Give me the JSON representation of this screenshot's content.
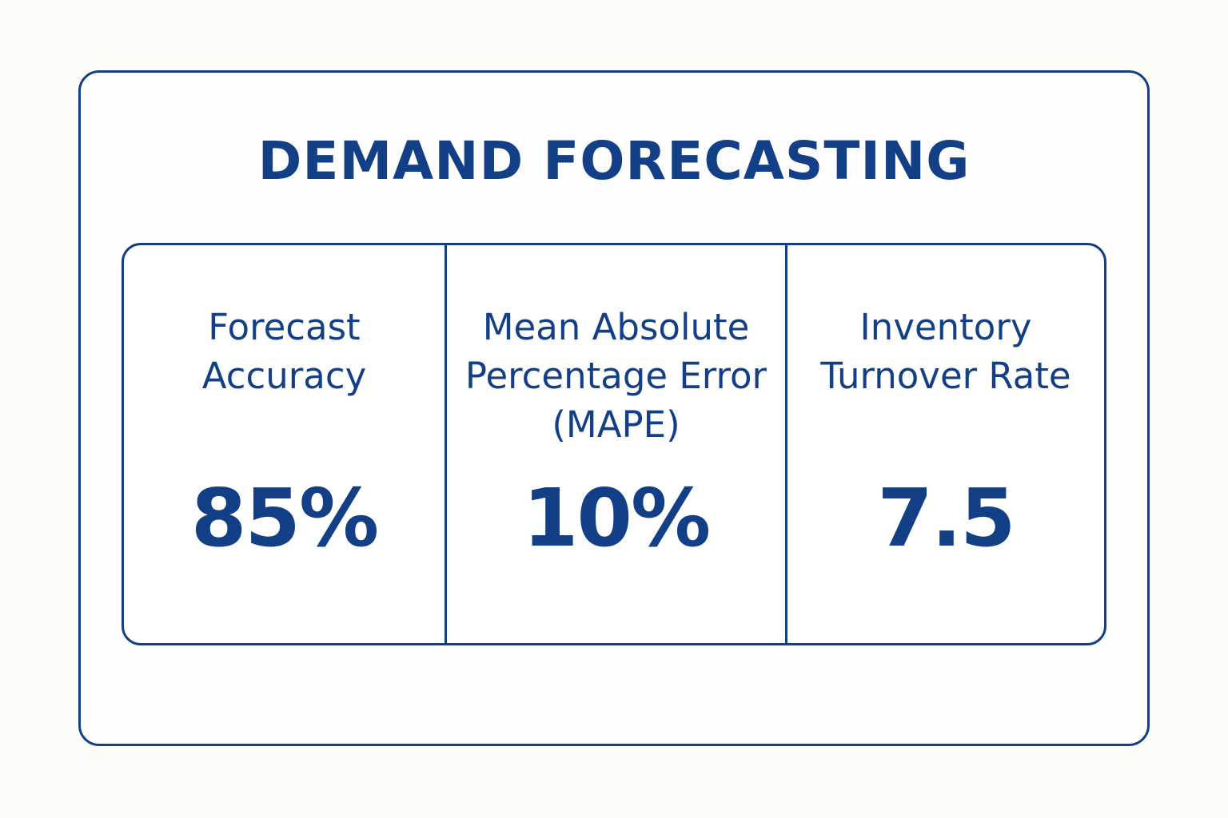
{
  "title": "DEMAND FORECASTING",
  "metrics": [
    {
      "label_lines": [
        "Forecast",
        "Accuracy"
      ],
      "value": "85%"
    },
    {
      "label_lines": [
        "Mean Absolute",
        "Percentage Error",
        "(MAPE)"
      ],
      "value": "10%"
    },
    {
      "label_lines": [
        "Inventory",
        "Turnover Rate"
      ],
      "value": "7.5"
    }
  ],
  "colors": {
    "primary": "#133f86",
    "background": "#fbfbf8"
  }
}
